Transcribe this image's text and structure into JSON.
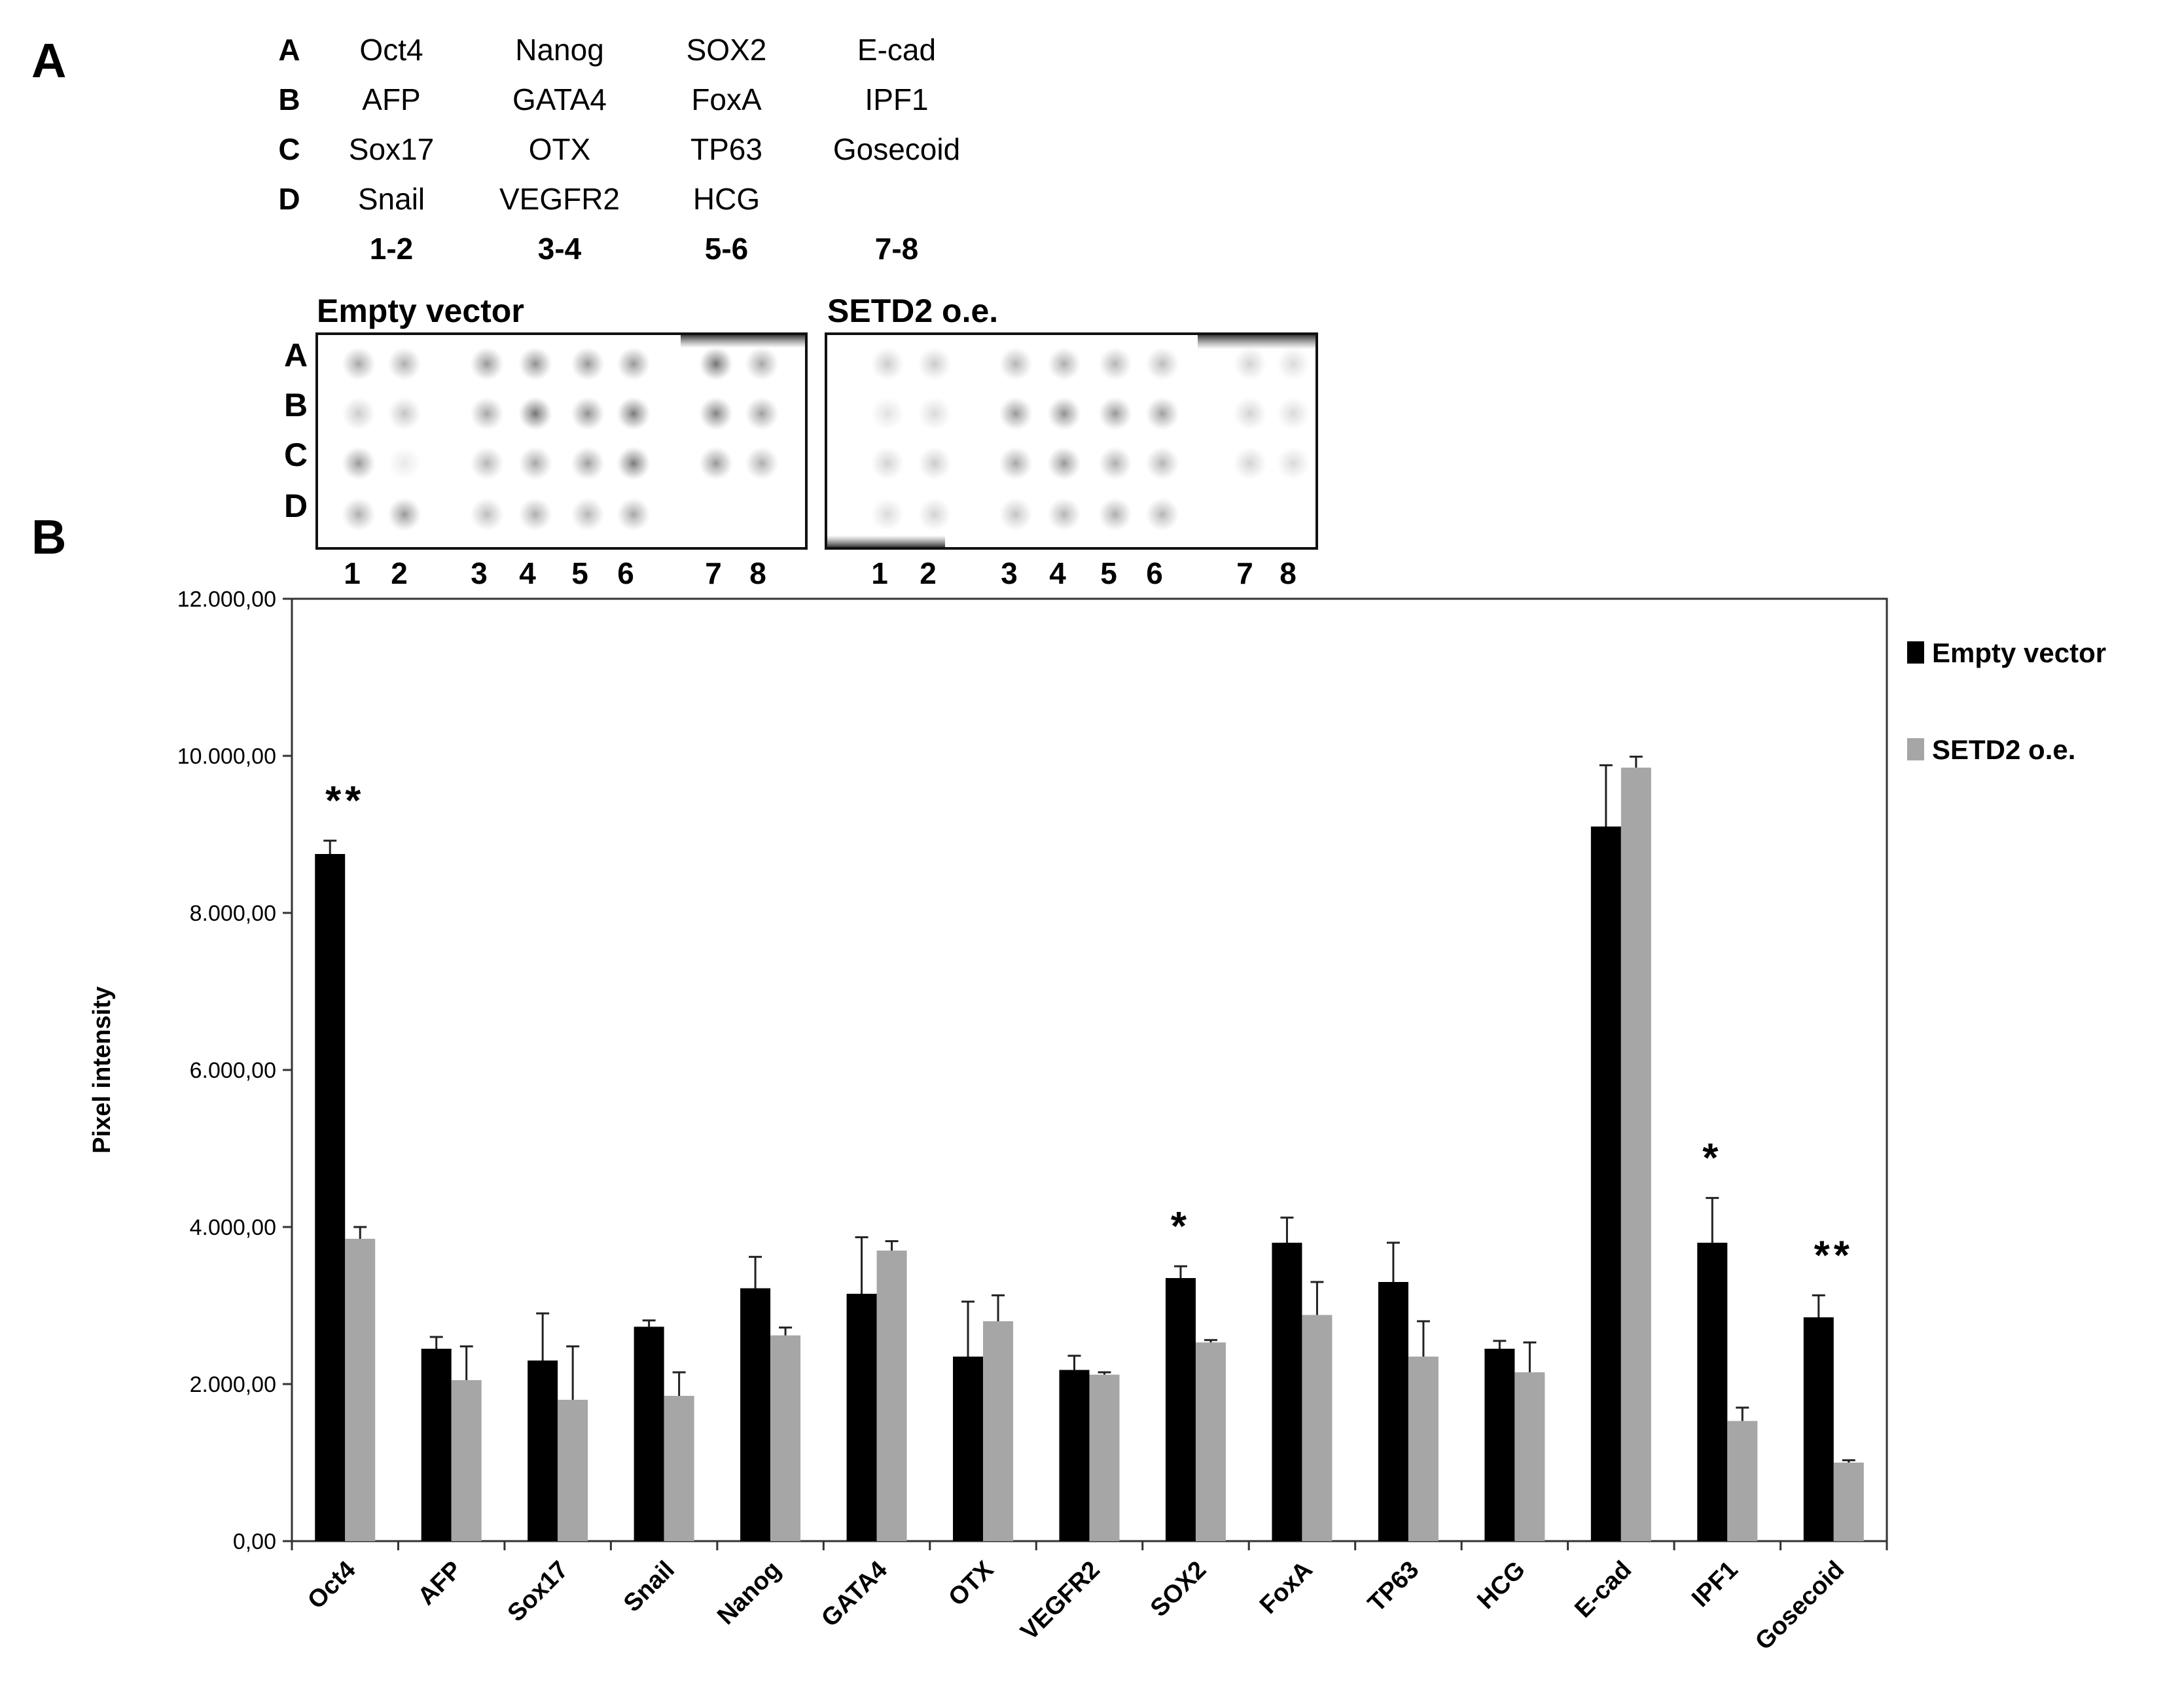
{
  "panel_a": {
    "letter": "A",
    "grid": {
      "rows": [
        {
          "label": "A",
          "cells": [
            "Oct4",
            "Nanog",
            "SOX2",
            "E-cad"
          ]
        },
        {
          "label": "B",
          "cells": [
            "AFP",
            "GATA4",
            "FoxA",
            "IPF1"
          ]
        },
        {
          "label": "C",
          "cells": [
            "Sox17",
            "OTX",
            "TP63",
            "Gosecoid"
          ]
        },
        {
          "label": "D",
          "cells": [
            "Snail",
            "VEGFR2",
            "HCG",
            ""
          ]
        }
      ],
      "col_groups": [
        "1-2",
        "3-4",
        "5-6",
        "7-8"
      ]
    },
    "blots": [
      {
        "title": "Empty vector"
      },
      {
        "title": "SETD2 o.e."
      }
    ],
    "blot_row_labels": [
      "A",
      "B",
      "C",
      "D"
    ],
    "blot_col_labels": [
      "1",
      "2",
      "3",
      "4",
      "5",
      "6",
      "7",
      "8"
    ]
  },
  "panel_b": {
    "letter": "B"
  },
  "chart_data": {
    "type": "bar",
    "title": "",
    "xlabel": "",
    "ylabel": "Pixel intensity",
    "ylim": [
      0,
      12000
    ],
    "yticks": [
      0,
      2000,
      4000,
      6000,
      8000,
      10000,
      12000
    ],
    "ytick_labels": [
      "0,00",
      "2.000,00",
      "4.000,00",
      "6.000,00",
      "8.000,00",
      "10.000,00",
      "12.000,00"
    ],
    "grid": false,
    "legend_position": "right",
    "categories": [
      "Oct4",
      "AFP",
      "Sox17",
      "Snail",
      "Nanog",
      "GATA4",
      "OTX",
      "VEGFR2",
      "SOX2",
      "FoxA",
      "TP63",
      "HCG",
      "E-cad",
      "IPF1",
      "Gosecoid"
    ],
    "series": [
      {
        "name": "Empty vector",
        "color": "#000000",
        "values": [
          8750,
          2450,
          2300,
          2730,
          3220,
          3150,
          2350,
          2180,
          3350,
          3800,
          3300,
          2450,
          9100,
          3800,
          2850
        ],
        "errors": [
          170,
          150,
          600,
          80,
          400,
          720,
          700,
          180,
          150,
          320,
          500,
          100,
          780,
          570,
          280
        ]
      },
      {
        "name": "SETD2 o.e.",
        "color": "#a6a6a6",
        "values": [
          3850,
          2050,
          1800,
          1850,
          2620,
          3700,
          2800,
          2120,
          2530,
          2880,
          2350,
          2150,
          9850,
          1530,
          1000
        ],
        "errors": [
          150,
          430,
          680,
          300,
          100,
          120,
          330,
          30,
          30,
          420,
          450,
          380,
          140,
          170,
          30
        ]
      }
    ],
    "annotations": [
      {
        "category": "Oct4",
        "text": "**"
      },
      {
        "category": "SOX2",
        "text": "*"
      },
      {
        "category": "IPF1",
        "text": "*"
      },
      {
        "category": "Gosecoid",
        "text": "**"
      }
    ]
  }
}
